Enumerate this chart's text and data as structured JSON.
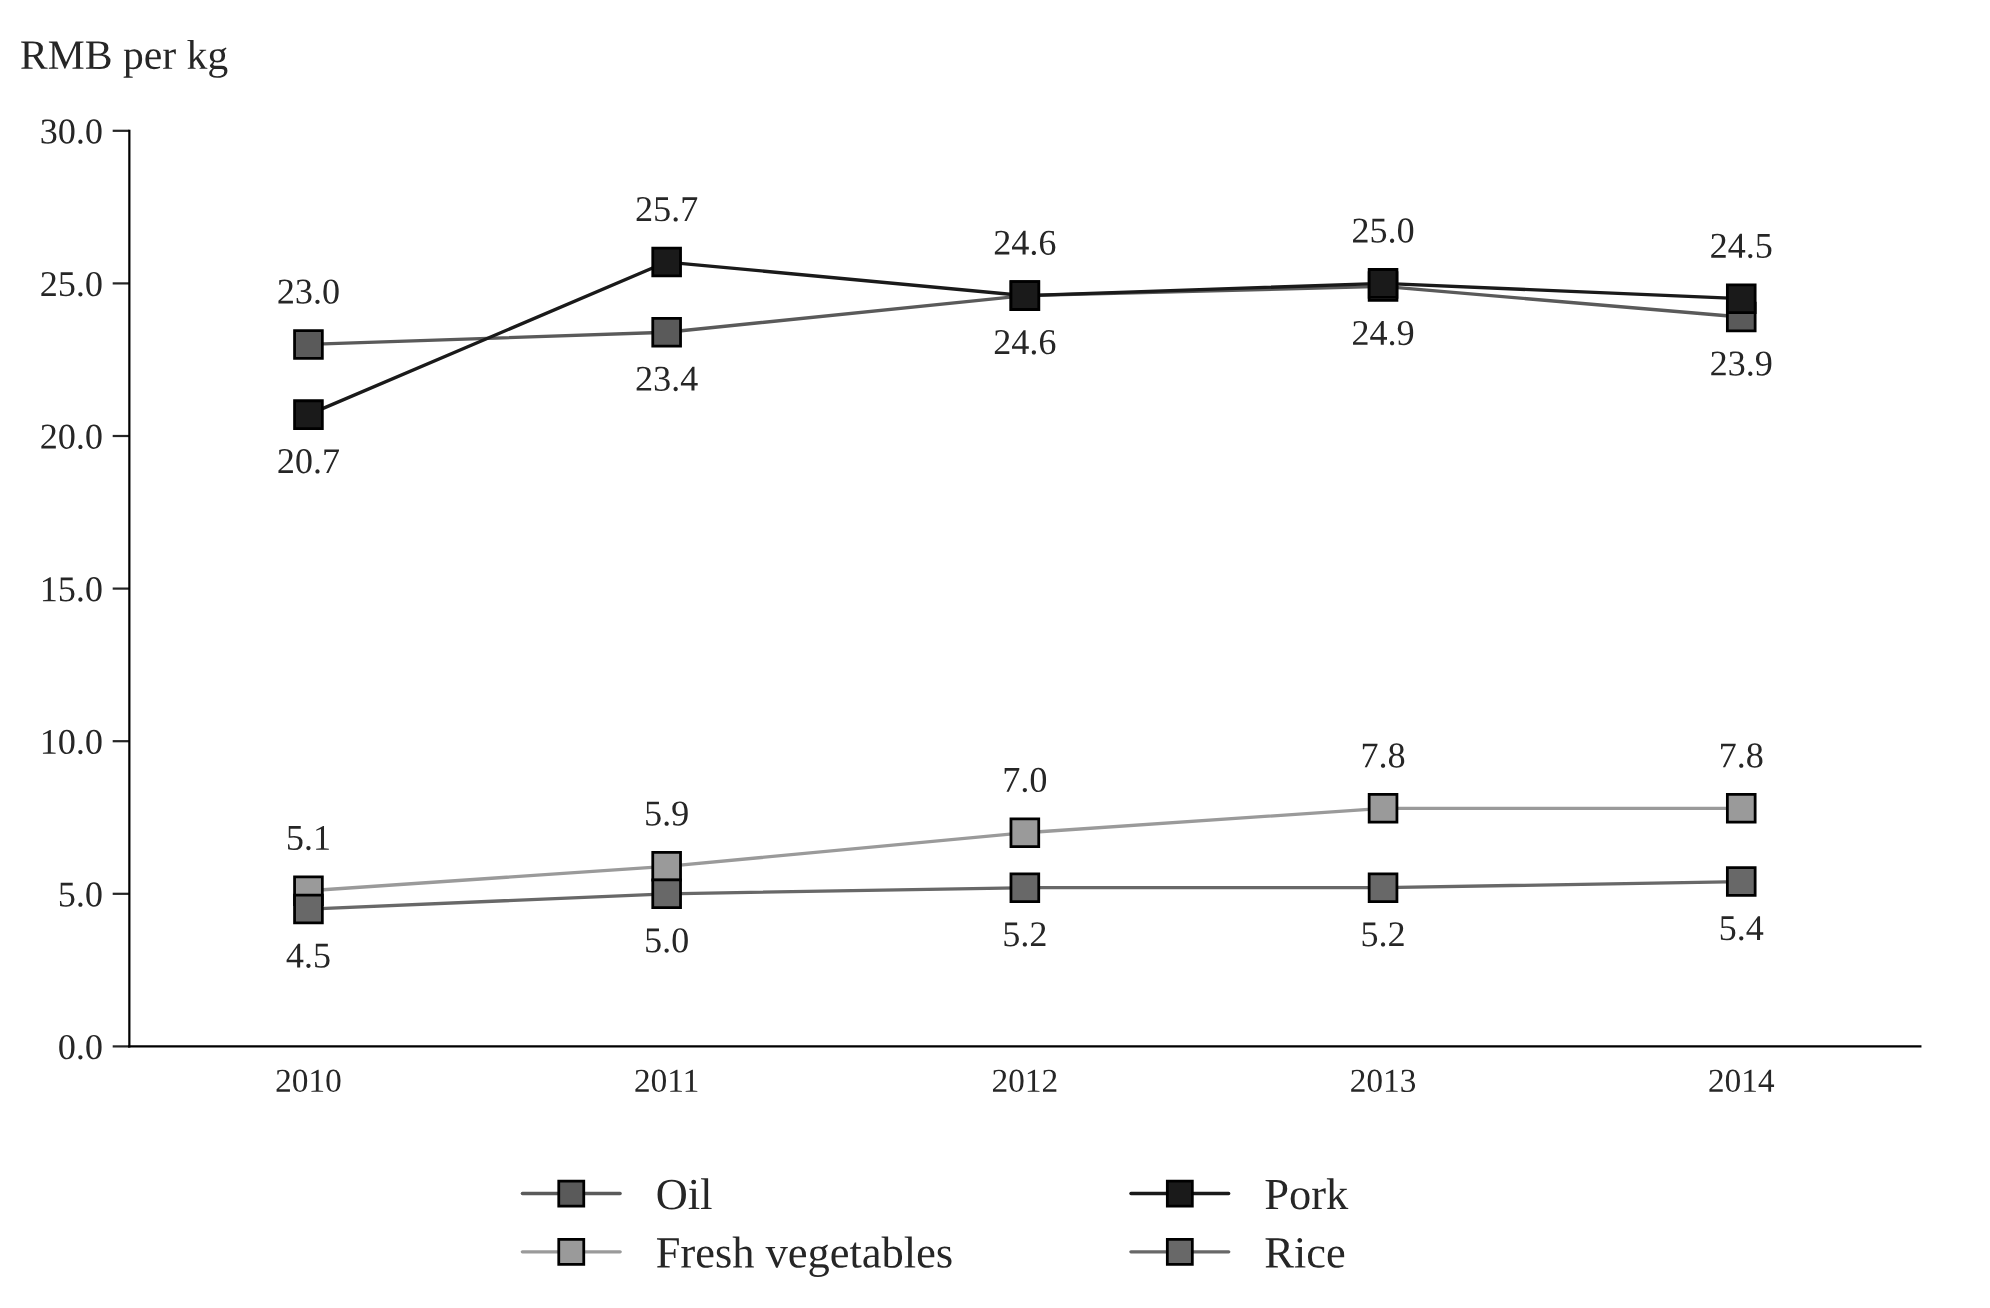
{
  "chart_data": {
    "type": "line",
    "ylabel": "RMB per kg",
    "categories": [
      "2010",
      "2011",
      "2012",
      "2013",
      "2014"
    ],
    "series": [
      {
        "name": "Oil",
        "color": "#5a5a5a",
        "values": [
          23.0,
          23.4,
          24.6,
          24.9,
          23.9
        ],
        "value_labels": [
          "23.0",
          "23.4",
          "24.6",
          "24.9",
          "23.9"
        ]
      },
      {
        "name": "Pork",
        "color": "#1a1a1a",
        "values": [
          20.7,
          25.7,
          24.6,
          25.0,
          24.5
        ],
        "value_labels": [
          "20.7",
          "25.7",
          "24.6",
          "25.0",
          "24.5"
        ]
      },
      {
        "name": "Fresh vegetables",
        "color": "#9a9a9a",
        "values": [
          5.1,
          5.9,
          7.0,
          7.8,
          7.8
        ],
        "value_labels": [
          "5.1",
          "5.9",
          "7.0",
          "7.8",
          "7.8"
        ]
      },
      {
        "name": "Rice",
        "color": "#686868",
        "values": [
          4.5,
          5.0,
          5.2,
          5.2,
          5.4
        ],
        "value_labels": [
          "4.5",
          "5.0",
          "5.2",
          "5.2",
          "5.4"
        ]
      }
    ],
    "ylim": [
      0,
      30
    ],
    "yticks": [
      {
        "value": 0,
        "label": "0.0"
      },
      {
        "value": 5,
        "label": "5.0"
      },
      {
        "value": 10,
        "label": "10.0"
      },
      {
        "value": 15,
        "label": "15.0"
      },
      {
        "value": 20,
        "label": "20.0"
      },
      {
        "value": 25,
        "label": "25.0"
      },
      {
        "value": 30,
        "label": "30.0"
      }
    ],
    "marker": "square",
    "line_style": "solid",
    "grid": false,
    "legend": "bottom"
  }
}
